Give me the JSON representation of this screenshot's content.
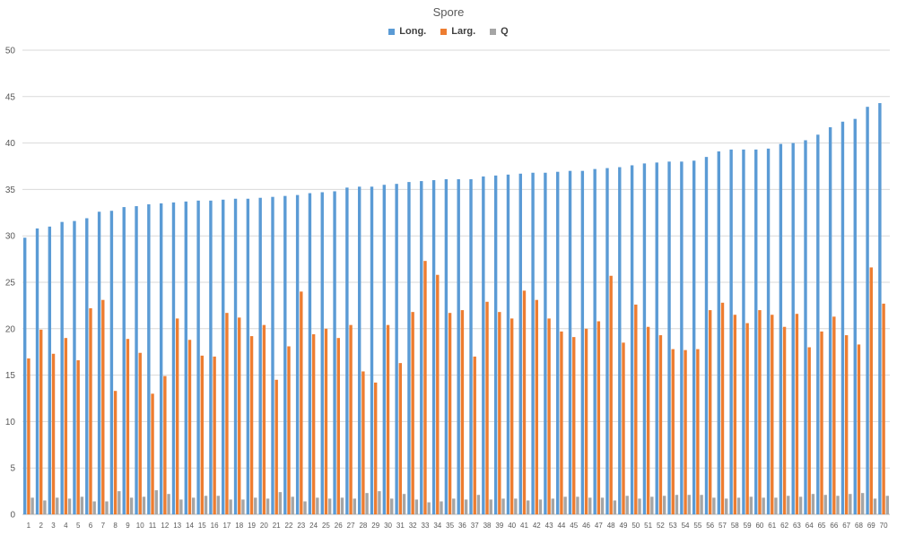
{
  "chart_data": {
    "type": "bar",
    "title": "Spore",
    "xlabel": "",
    "ylabel": "",
    "ylim": [
      0,
      50
    ],
    "yticks": [
      0,
      5,
      10,
      15,
      20,
      25,
      30,
      35,
      40,
      45,
      50
    ],
    "grid": true,
    "legend_position": "top",
    "categories": [
      "1",
      "2",
      "3",
      "4",
      "5",
      "6",
      "7",
      "8",
      "9",
      "10",
      "11",
      "12",
      "13",
      "14",
      "15",
      "16",
      "17",
      "18",
      "19",
      "20",
      "21",
      "22",
      "23",
      "24",
      "25",
      "26",
      "27",
      "28",
      "29",
      "30",
      "31",
      "32",
      "33",
      "34",
      "35",
      "36",
      "37",
      "38",
      "39",
      "40",
      "41",
      "42",
      "43",
      "44",
      "45",
      "46",
      "47",
      "48",
      "49",
      "50",
      "51",
      "52",
      "53",
      "54",
      "55",
      "56",
      "57",
      "58",
      "59",
      "60",
      "61",
      "62",
      "63",
      "64",
      "65",
      "66",
      "67",
      "68",
      "69",
      "70"
    ],
    "series": [
      {
        "name": "Long.",
        "color": "#5B9BD5",
        "values": [
          29.8,
          30.8,
          31.0,
          31.5,
          31.6,
          31.9,
          32.6,
          32.7,
          33.1,
          33.2,
          33.4,
          33.5,
          33.6,
          33.7,
          33.8,
          33.8,
          33.9,
          34.0,
          34.0,
          34.1,
          34.2,
          34.3,
          34.4,
          34.6,
          34.7,
          34.8,
          35.2,
          35.3,
          35.3,
          35.5,
          35.6,
          35.8,
          35.9,
          36.0,
          36.1,
          36.1,
          36.1,
          36.4,
          36.5,
          36.6,
          36.7,
          36.8,
          36.8,
          36.9,
          37.0,
          37.0,
          37.2,
          37.3,
          37.4,
          37.6,
          37.8,
          37.9,
          38.0,
          38.0,
          38.1,
          38.5,
          39.1,
          39.3,
          39.3,
          39.3,
          39.4,
          39.9,
          40.0,
          40.3,
          40.9,
          41.7,
          42.3,
          42.6,
          43.9,
          44.3
        ]
      },
      {
        "name": "Larg.",
        "color": "#ED7D31",
        "values": [
          16.8,
          19.9,
          17.3,
          19.0,
          16.6,
          22.2,
          23.1,
          13.3,
          18.9,
          17.4,
          13.0,
          14.9,
          21.1,
          18.8,
          17.1,
          17.0,
          21.7,
          21.2,
          19.2,
          20.4,
          14.5,
          18.1,
          24.0,
          19.4,
          20.0,
          19.0,
          20.4,
          15.4,
          14.2,
          20.4,
          16.3,
          21.8,
          27.3,
          25.8,
          21.7,
          22.0,
          17.0,
          22.9,
          21.8,
          21.1,
          24.1,
          23.1,
          21.1,
          19.7,
          19.1,
          20.0,
          20.8,
          25.7,
          18.5,
          22.6,
          20.2,
          19.3,
          17.8,
          17.7,
          17.8,
          22.0,
          22.8,
          21.5,
          20.6,
          22.0,
          21.5,
          20.2,
          21.6,
          18.0,
          19.7,
          21.3,
          19.3,
          18.3,
          26.6,
          22.7
        ]
      },
      {
        "name": "Q",
        "color": "#A5A5A5",
        "values": [
          1.8,
          1.5,
          1.8,
          1.7,
          1.9,
          1.4,
          1.4,
          2.5,
          1.8,
          1.9,
          2.6,
          2.2,
          1.6,
          1.8,
          2.0,
          2.0,
          1.6,
          1.6,
          1.8,
          1.7,
          2.4,
          1.9,
          1.4,
          1.8,
          1.7,
          1.8,
          1.7,
          2.3,
          2.5,
          1.7,
          2.2,
          1.6,
          1.3,
          1.4,
          1.7,
          1.6,
          2.1,
          1.6,
          1.7,
          1.7,
          1.5,
          1.6,
          1.7,
          1.9,
          1.9,
          1.8,
          1.8,
          1.5,
          2.0,
          1.7,
          1.9,
          2.0,
          2.1,
          2.1,
          2.1,
          1.8,
          1.7,
          1.8,
          1.9,
          1.8,
          1.8,
          2.0,
          1.9,
          2.2,
          2.1,
          2.0,
          2.2,
          2.3,
          1.7,
          2.0
        ]
      }
    ]
  }
}
